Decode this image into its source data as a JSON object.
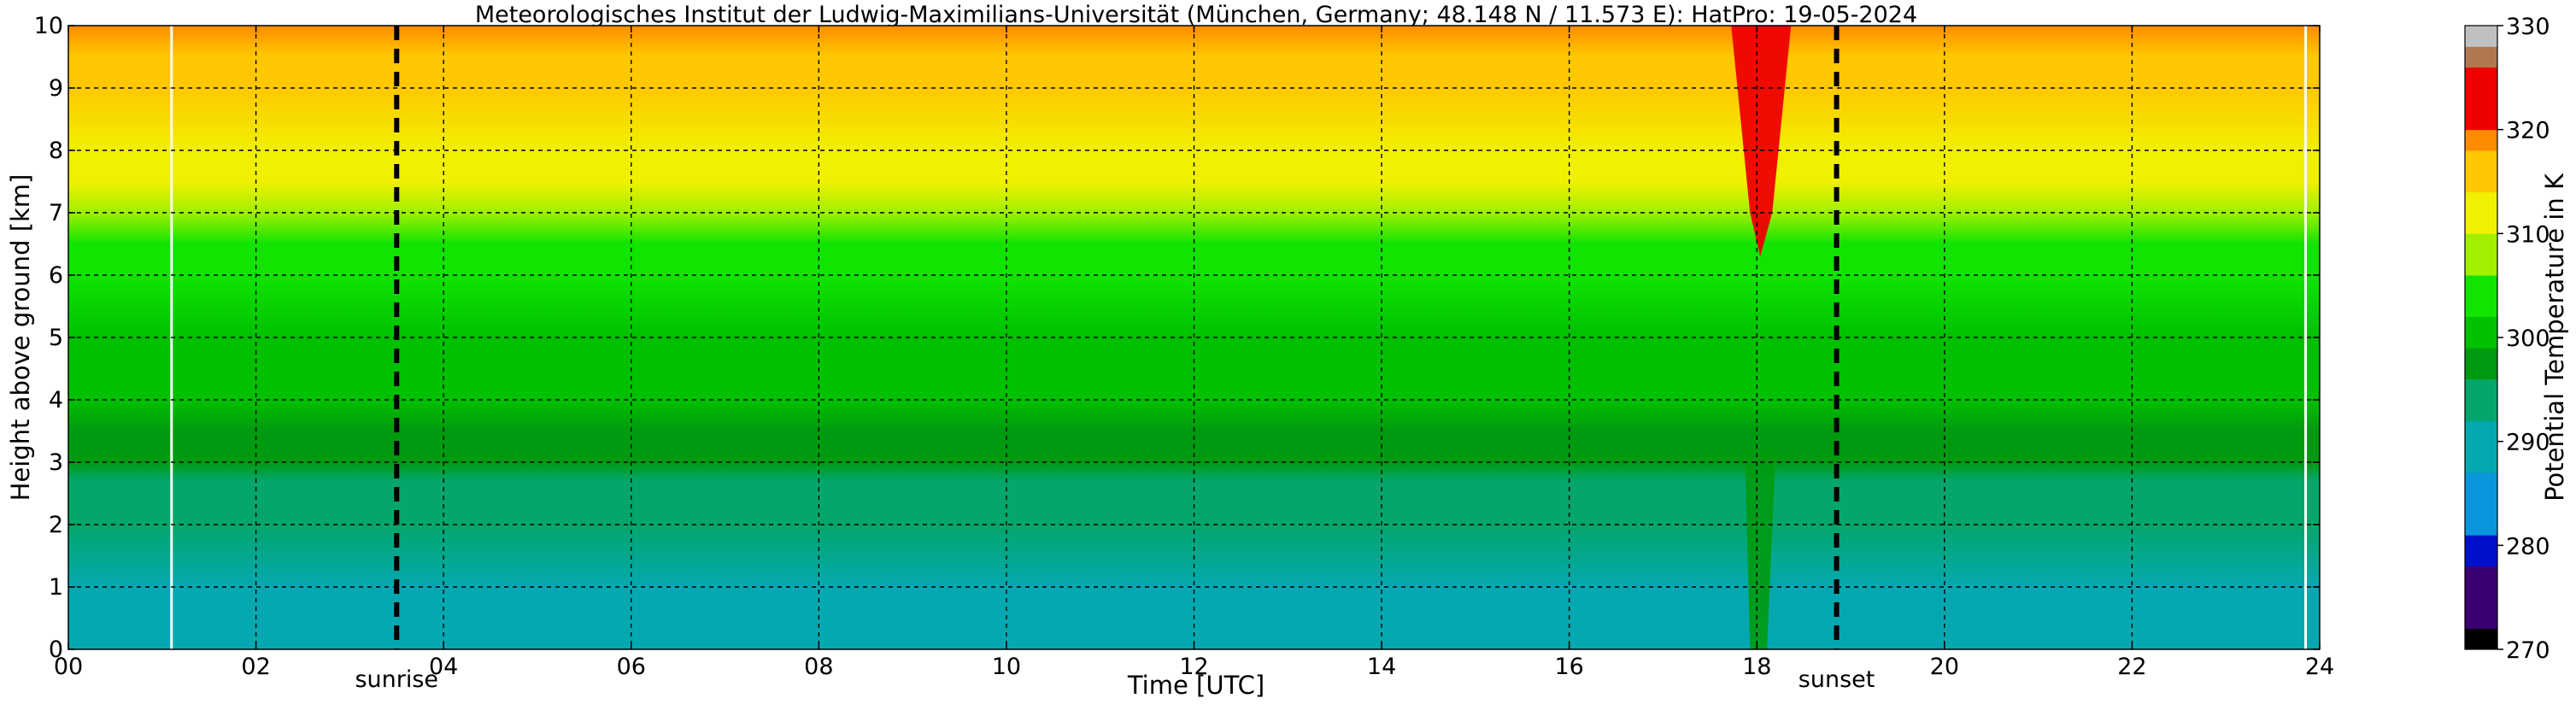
{
  "chart_data": {
    "type": "heatmap",
    "title": "Meteorologisches Institut der Ludwig-Maximilians-Universität (München, Germany; 48.148 N / 11.573 E):    HatPro: 19-05-2024",
    "xlabel": "Time [UTC]",
    "ylabel": "Height above ground [km]",
    "colorbar_label": "Potential Temperature in K",
    "xlim": [
      0,
      24
    ],
    "ylim": [
      0,
      10
    ],
    "clim": [
      270,
      330
    ],
    "x_ticks": [
      {
        "value": 0,
        "label": "00"
      },
      {
        "value": 2,
        "label": "02"
      },
      {
        "value": 4,
        "label": "04"
      },
      {
        "value": 6,
        "label": "06"
      },
      {
        "value": 8,
        "label": "08"
      },
      {
        "value": 10,
        "label": "10"
      },
      {
        "value": 12,
        "label": "12"
      },
      {
        "value": 14,
        "label": "14"
      },
      {
        "value": 16,
        "label": "16"
      },
      {
        "value": 18,
        "label": "18"
      },
      {
        "value": 20,
        "label": "20"
      },
      {
        "value": 22,
        "label": "22"
      },
      {
        "value": 24,
        "label": "24"
      }
    ],
    "y_ticks": [
      {
        "value": 0,
        "label": "0"
      },
      {
        "value": 1,
        "label": "1"
      },
      {
        "value": 2,
        "label": "2"
      },
      {
        "value": 3,
        "label": "3"
      },
      {
        "value": 4,
        "label": "4"
      },
      {
        "value": 5,
        "label": "5"
      },
      {
        "value": 6,
        "label": "6"
      },
      {
        "value": 7,
        "label": "7"
      },
      {
        "value": 8,
        "label": "8"
      },
      {
        "value": 9,
        "label": "9"
      },
      {
        "value": 10,
        "label": "10"
      }
    ],
    "colorbar_ticks": [
      {
        "value": 270,
        "label": "270"
      },
      {
        "value": 280,
        "label": "280"
      },
      {
        "value": 290,
        "label": "290"
      },
      {
        "value": 300,
        "label": "300"
      },
      {
        "value": 310,
        "label": "310"
      },
      {
        "value": 320,
        "label": "320"
      },
      {
        "value": 330,
        "label": "330"
      }
    ],
    "grid": true,
    "colormap": [
      {
        "from": 270,
        "to": 272,
        "color": "#000000"
      },
      {
        "from": 272,
        "to": 278,
        "color": "#3a0070"
      },
      {
        "from": 278,
        "to": 281,
        "color": "#0010c8"
      },
      {
        "from": 281,
        "to": 287,
        "color": "#0a96dc"
      },
      {
        "from": 287,
        "to": 292,
        "color": "#05a8b0"
      },
      {
        "from": 292,
        "to": 296,
        "color": "#04a66a"
      },
      {
        "from": 296,
        "to": 299,
        "color": "#009a10"
      },
      {
        "from": 299,
        "to": 302,
        "color": "#00c000"
      },
      {
        "from": 302,
        "to": 306,
        "color": "#10e400"
      },
      {
        "from": 306,
        "to": 310,
        "color": "#a0f000"
      },
      {
        "from": 310,
        "to": 314,
        "color": "#f0f000"
      },
      {
        "from": 314,
        "to": 318,
        "color": "#ffc800"
      },
      {
        "from": 318,
        "to": 320,
        "color": "#ff8c00"
      },
      {
        "from": 320,
        "to": 326,
        "color": "#ee0000"
      },
      {
        "from": 326,
        "to": 328,
        "color": "#b07850"
      },
      {
        "from": 328,
        "to": 330,
        "color": "#c0c0c0"
      }
    ],
    "profile": [
      {
        "height": 0.0,
        "value": 289
      },
      {
        "height": 0.5,
        "value": 290
      },
      {
        "height": 1.0,
        "value": 291
      },
      {
        "height": 2.0,
        "value": 292
      },
      {
        "height": 2.7,
        "value": 293
      },
      {
        "height": 3.0,
        "value": 296
      },
      {
        "height": 3.5,
        "value": 298
      },
      {
        "height": 4.0,
        "value": 299.5
      },
      {
        "height": 5.0,
        "value": 301
      },
      {
        "height": 6.0,
        "value": 303
      },
      {
        "height": 6.5,
        "value": 305
      },
      {
        "height": 7.0,
        "value": 308
      },
      {
        "height": 7.5,
        "value": 311
      },
      {
        "height": 8.0,
        "value": 313
      },
      {
        "height": 9.0,
        "value": 315
      },
      {
        "height": 9.5,
        "value": 317
      },
      {
        "height": 10.0,
        "value": 319
      }
    ],
    "markers": [
      {
        "time": 3.5,
        "label": "sunrise"
      },
      {
        "time": 18.85,
        "label": "sunset"
      }
    ],
    "data_gaps": [
      1.1,
      23.85
    ],
    "anomaly": {
      "time": 18.0,
      "value_top": 322,
      "value_bottom": 298
    }
  },
  "colors": {
    "marker_line": "#000000",
    "gap_line": "#ffffff",
    "grid": "#000000"
  }
}
